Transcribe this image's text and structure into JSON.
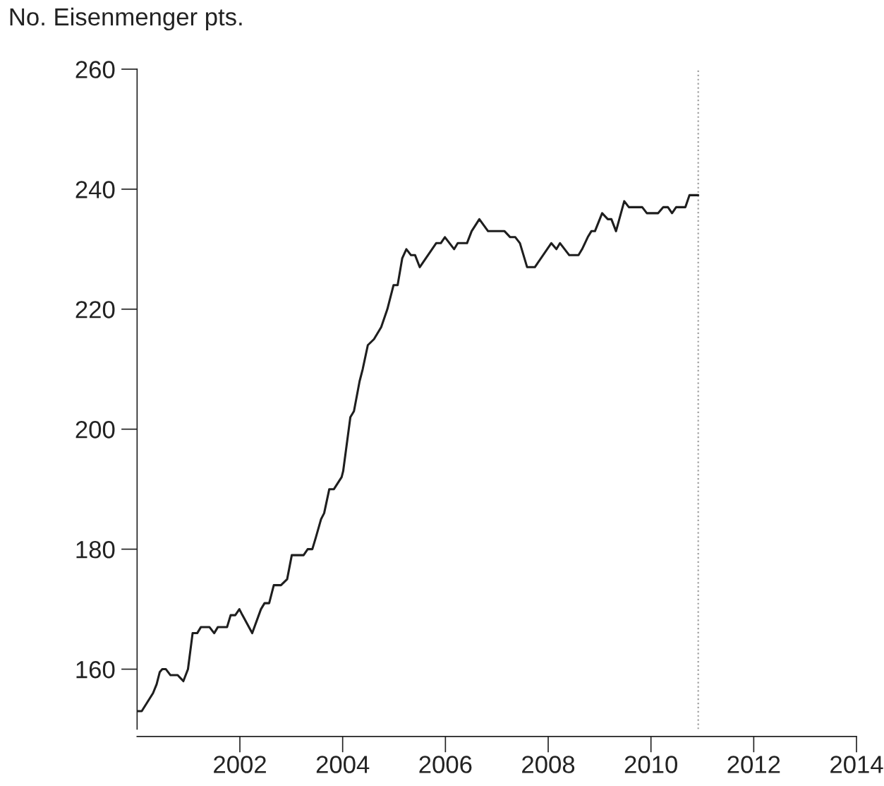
{
  "chart_data": {
    "type": "line",
    "ylabel": "No. Eisenmenger pts.",
    "line_style": "solid",
    "xlim": [
      2000,
      2014
    ],
    "xticks": [
      2002,
      2004,
      2006,
      2008,
      2010,
      2012,
      2014
    ],
    "ylim": [
      150,
      260
    ],
    "yticks": [
      160,
      180,
      200,
      220,
      240,
      260
    ],
    "x": [
      2000.0,
      2000.09,
      2000.31,
      2000.38,
      2000.44,
      2000.49,
      2000.56,
      2000.65,
      2000.79,
      2000.9,
      2000.99,
      2001.08,
      2001.17,
      2001.24,
      2001.41,
      2001.5,
      2001.57,
      2001.75,
      2001.82,
      2001.91,
      2001.99,
      2002.05,
      2002.24,
      2002.41,
      2002.48,
      2002.57,
      2002.66,
      2002.8,
      2002.92,
      2003.01,
      2003.24,
      2003.32,
      2003.41,
      2003.48,
      2003.58,
      2003.64,
      2003.74,
      2003.83,
      2003.98,
      2004.01,
      2004.15,
      2004.22,
      2004.33,
      2004.39,
      2004.49,
      2004.61,
      2004.75,
      2004.87,
      2004.99,
      2005.07,
      2005.16,
      2005.24,
      2005.33,
      2005.41,
      2005.5,
      2005.82,
      2005.91,
      2005.99,
      2006.17,
      2006.24,
      2006.42,
      2006.51,
      2006.66,
      2006.83,
      2007.15,
      2007.26,
      2007.36,
      2007.45,
      2007.59,
      2007.74,
      2008.06,
      2008.16,
      2008.23,
      2008.41,
      2008.59,
      2008.66,
      2008.77,
      2008.84,
      2008.91,
      2009.05,
      2009.16,
      2009.23,
      2009.32,
      2009.48,
      2009.57,
      2009.83,
      2009.92,
      2010.14,
      2010.24,
      2010.33,
      2010.41,
      2010.49,
      2010.67,
      2010.75,
      2010.92
    ],
    "series": [
      {
        "color": "#1e1e1e",
        "values": [
          153,
          153,
          156,
          157.5,
          159.5,
          160,
          160,
          159,
          159,
          158,
          160,
          166,
          166,
          167,
          167,
          166,
          167,
          167,
          169,
          169,
          170,
          169,
          166,
          170,
          171,
          171,
          174,
          174,
          175,
          179,
          179,
          180,
          180,
          182,
          185,
          186,
          190,
          190,
          192,
          193,
          202,
          203,
          208,
          210,
          214,
          215,
          217,
          220,
          224,
          224,
          228.5,
          230,
          229,
          229,
          227,
          231,
          231,
          232,
          230,
          231,
          231,
          233,
          235,
          233,
          233,
          232,
          232,
          231,
          227,
          227,
          231,
          230,
          231,
          229,
          229,
          230,
          232,
          233,
          233,
          236,
          235,
          235,
          233,
          238,
          237,
          237,
          236,
          236,
          237,
          237,
          236,
          237,
          237,
          239,
          239
        ]
      }
    ],
    "ref_lines": [
      {
        "axis": "x",
        "value": 2010.92,
        "color": "#a0a0a0",
        "line_style": "dotted"
      }
    ]
  }
}
